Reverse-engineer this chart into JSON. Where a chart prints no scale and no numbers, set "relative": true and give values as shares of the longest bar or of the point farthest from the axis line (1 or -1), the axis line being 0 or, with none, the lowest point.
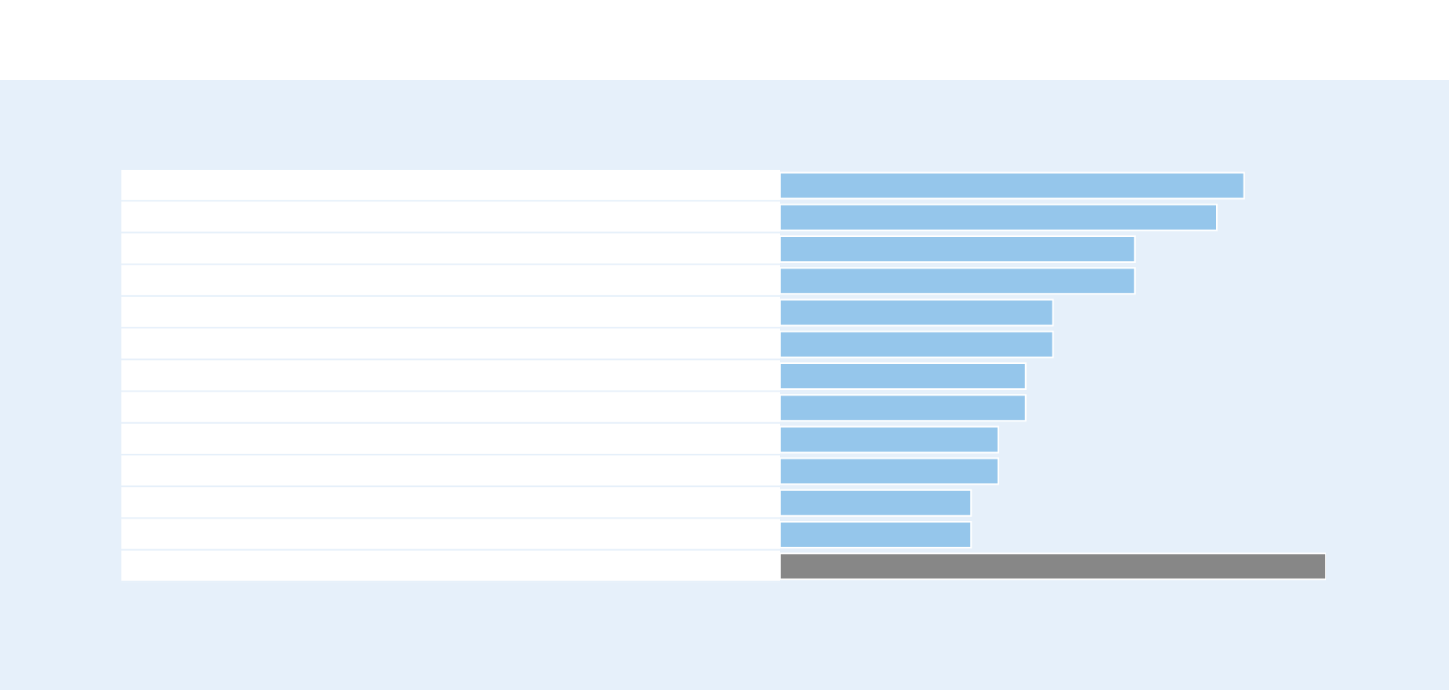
{
  "chart_data": {
    "type": "bar",
    "orientation": "horizontal",
    "relative": true,
    "categories": [
      null,
      null,
      null,
      null,
      null,
      null,
      null,
      null,
      null,
      null,
      null,
      null,
      null
    ],
    "values": [
      0.85,
      0.8,
      0.65,
      0.65,
      0.5,
      0.5,
      0.45,
      0.45,
      0.4,
      0.4,
      0.35,
      0.35,
      1
    ],
    "colors": [
      "#95c6eb",
      "#95c6eb",
      "#95c6eb",
      "#95c6eb",
      "#95c6eb",
      "#95c6eb",
      "#95c6eb",
      "#95c6eb",
      "#95c6eb",
      "#95c6eb",
      "#95c6eb",
      "#95c6eb",
      "#878787"
    ]
  }
}
